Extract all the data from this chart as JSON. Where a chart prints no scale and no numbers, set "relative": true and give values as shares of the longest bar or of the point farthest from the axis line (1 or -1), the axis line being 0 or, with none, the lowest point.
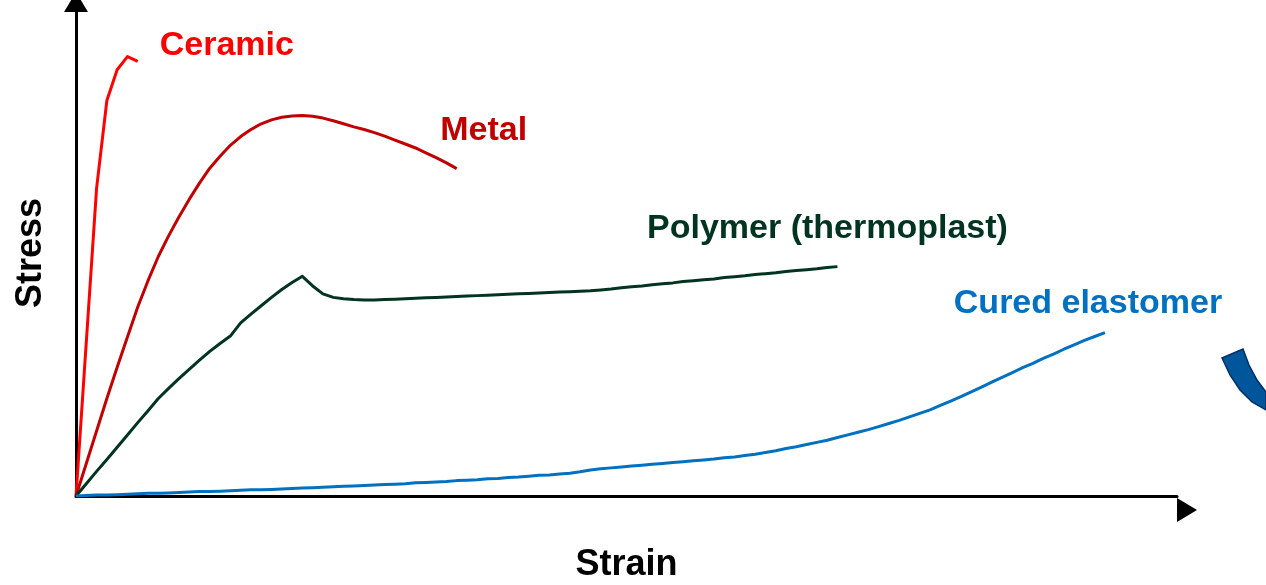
{
  "chart_data": {
    "type": "line",
    "relative": true,
    "xlabel": "Strain",
    "ylabel": "Stress",
    "marker": "none",
    "categories": [
      null,
      null,
      null,
      null,
      null,
      null,
      null,
      null,
      null,
      null,
      null,
      null,
      null,
      null,
      null,
      null,
      null,
      null,
      null,
      null,
      null,
      null,
      null,
      null,
      null,
      null,
      null,
      null,
      null,
      null,
      null,
      null,
      null,
      null,
      null,
      null,
      null,
      null,
      null,
      null,
      null,
      null,
      null,
      null,
      null,
      null,
      null,
      null,
      null,
      null,
      null,
      null,
      null,
      null,
      null,
      null,
      null,
      null,
      null,
      null,
      null,
      null,
      null,
      null,
      null,
      null,
      null,
      null,
      null,
      null,
      null,
      null,
      null,
      null,
      null,
      null,
      null,
      null,
      null,
      null,
      null,
      null,
      null,
      null,
      null,
      null,
      null,
      null,
      null,
      null,
      null,
      null,
      null,
      null,
      null,
      null,
      null,
      null,
      null,
      null,
      null,
      null,
      null,
      null,
      null,
      null,
      null,
      null
    ],
    "series": [
      {
        "name": "Ceramic",
        "color": "#ff0000",
        "values": [
          0,
          0.35,
          0.7,
          0.9,
          0.97,
          1,
          0.989,
          null,
          null,
          null,
          null,
          null,
          null,
          null,
          null,
          null,
          null,
          null,
          null,
          null,
          null,
          null,
          null,
          null,
          null,
          null,
          null,
          null,
          null,
          null,
          null,
          null,
          null,
          null,
          null,
          null,
          null,
          null,
          null,
          null,
          null,
          null,
          null,
          null,
          null,
          null,
          null,
          null,
          null,
          null,
          null,
          null,
          null,
          null,
          null,
          null,
          null,
          null,
          null,
          null,
          null,
          null,
          null,
          null,
          null,
          null,
          null,
          null,
          null,
          null,
          null,
          null,
          null,
          null,
          null,
          null,
          null,
          null,
          null,
          null,
          null,
          null,
          null,
          null,
          null,
          null,
          null,
          null,
          null,
          null,
          null,
          null,
          null,
          null,
          null,
          null,
          null,
          null,
          null,
          null,
          null,
          null,
          null,
          null,
          null,
          null,
          null,
          null
        ]
      },
      {
        "name": "Metal",
        "color": "#c00000",
        "values": [
          0,
          0.074,
          0.148,
          0.222,
          0.293,
          0.362,
          0.43,
          0.49,
          0.545,
          0.592,
          0.635,
          0.675,
          0.712,
          0.746,
          0.773,
          0.798,
          0.818,
          0.834,
          0.847,
          0.856,
          0.862,
          0.865,
          0.866,
          0.864,
          0.86,
          0.854,
          0.847,
          0.84,
          0.834,
          0.827,
          0.819,
          0.81,
          0.801,
          0.792,
          0.781,
          0.77,
          0.758,
          0.745,
          null,
          null,
          null,
          null,
          null,
          null,
          null,
          null,
          null,
          null,
          null,
          null,
          null,
          null,
          null,
          null,
          null,
          null,
          null,
          null,
          null,
          null,
          null,
          null,
          null,
          null,
          null,
          null,
          null,
          null,
          null,
          null,
          null,
          null,
          null,
          null,
          null,
          null,
          null,
          null,
          null,
          null,
          null,
          null,
          null,
          null,
          null,
          null,
          null,
          null,
          null,
          null,
          null,
          null,
          null,
          null,
          null,
          null,
          null,
          null,
          null,
          null,
          null,
          null,
          null,
          null,
          null,
          null,
          null,
          null
        ]
      },
      {
        "name": "Polymer (thermoplast)",
        "color": "#003320",
        "values": [
          0,
          0.028,
          0.056,
          0.083,
          0.111,
          0.139,
          0.167,
          0.194,
          0.222,
          0.245,
          0.267,
          0.288,
          0.309,
          0.329,
          0.347,
          0.364,
          0.394,
          0.414,
          0.433,
          0.452,
          0.47,
          0.486,
          0.5,
          0.478,
          0.46,
          0.452,
          0.449,
          0.447,
          0.446,
          0.446,
          0.447,
          0.448,
          0.449,
          0.45,
          0.451,
          0.452,
          0.453,
          0.454,
          0.455,
          0.456,
          0.457,
          0.458,
          0.459,
          0.46,
          0.461,
          0.462,
          0.463,
          0.464,
          0.465,
          0.466,
          0.467,
          0.469,
          0.471,
          0.474,
          0.476,
          0.478,
          0.481,
          0.483,
          0.485,
          0.488,
          0.49,
          0.492,
          0.494,
          0.497,
          0.499,
          0.501,
          0.504,
          0.506,
          0.508,
          0.511,
          0.513,
          0.515,
          0.517,
          0.52,
          0.522,
          null,
          null,
          null,
          null,
          null,
          null,
          null,
          null,
          null,
          null,
          null,
          null,
          null,
          null,
          null,
          null,
          null,
          null,
          null,
          null,
          null,
          null,
          null,
          null,
          null,
          null,
          null,
          null,
          null,
          null,
          null,
          null,
          null
        ]
      },
      {
        "name": "Cured elastomer",
        "color": "#0070c0",
        "values": [
          0,
          0.001,
          0.002,
          0.002,
          0.003,
          0.004,
          0.005,
          0.006,
          0.006,
          0.007,
          0.008,
          0.009,
          0.01,
          0.01,
          0.011,
          0.012,
          0.013,
          0.014,
          0.014,
          0.015,
          0.016,
          0.017,
          0.018,
          0.019,
          0.02,
          0.021,
          0.022,
          0.023,
          0.024,
          0.025,
          0.026,
          0.027,
          0.028,
          0.03,
          0.031,
          0.032,
          0.033,
          0.035,
          0.036,
          0.037,
          0.039,
          0.04,
          0.042,
          0.043,
          0.045,
          0.047,
          0.048,
          0.05,
          0.052,
          0.055,
          0.059,
          0.062,
          0.064,
          0.066,
          0.068,
          0.07,
          0.072,
          0.074,
          0.076,
          0.078,
          0.08,
          0.082,
          0.084,
          0.087,
          0.089,
          0.092,
          0.095,
          0.099,
          0.103,
          0.108,
          0.112,
          0.117,
          0.122,
          0.127,
          0.133,
          0.139,
          0.145,
          0.151,
          0.158,
          0.165,
          0.172,
          0.18,
          0.188,
          0.196,
          0.206,
          0.216,
          0.226,
          0.237,
          0.248,
          0.259,
          0.27,
          0.281,
          0.292,
          0.302,
          0.313,
          0.323,
          0.334,
          0.344,
          0.354,
          0.363,
          0.372,
          null,
          null,
          null,
          null,
          null,
          null,
          null
        ]
      }
    ]
  }
}
